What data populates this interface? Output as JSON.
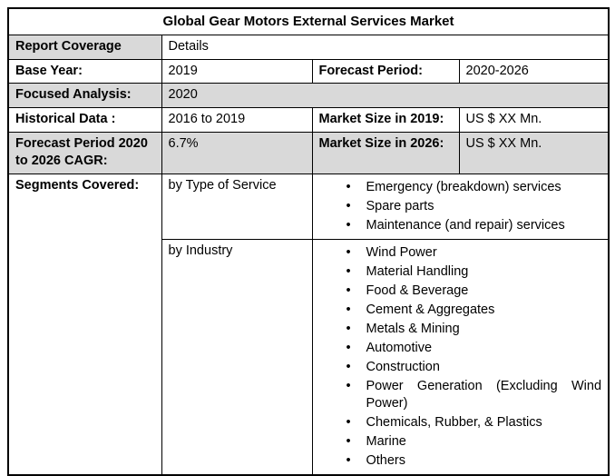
{
  "title": "Global Gear Motors External Services Market",
  "coverage": {
    "label": "Report Coverage",
    "value": "Details"
  },
  "base_year": {
    "label": "Base Year:",
    "value": "2019"
  },
  "forecast_period": {
    "label": "Forecast Period:",
    "value": "2020-2026"
  },
  "focused_analysis": {
    "label": "Focused Analysis:",
    "value": "2020"
  },
  "historical_data": {
    "label": "Historical Data :",
    "value": "2016 to 2019"
  },
  "market_size_2019": {
    "label": "Market Size in 2019:",
    "value": "US $ XX Mn."
  },
  "cagr": {
    "label": "Forecast Period 2020 to 2026 CAGR:",
    "value": "6.7%"
  },
  "market_size_2026": {
    "label": "Market Size in 2026:",
    "value": "US $ XX Mn."
  },
  "segments": {
    "label": "Segments Covered:",
    "by_type": {
      "label": "by Type of Service",
      "items": [
        "Emergency (breakdown) services",
        "Spare parts",
        "Maintenance (and repair) services"
      ]
    },
    "by_industry": {
      "label": "by Industry",
      "items": [
        "Wind Power",
        "Material Handling",
        "Food & Beverage",
        "Cement & Aggregates",
        "Metals & Mining",
        "Automotive",
        "Construction",
        "Power Generation (Excluding Wind Power)",
        "Chemicals, Rubber, & Plastics",
        "Marine",
        "Others"
      ]
    }
  },
  "colors": {
    "shaded_row": "#d9d9d9",
    "border": "#000000",
    "background": "#ffffff"
  }
}
